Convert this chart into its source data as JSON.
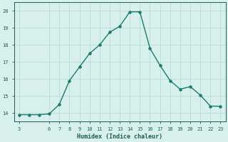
{
  "xlabel": "Humidex (Indice chaleur)",
  "x": [
    3,
    4,
    5,
    6,
    7,
    8,
    9,
    10,
    11,
    12,
    13,
    14,
    15,
    16,
    17,
    18,
    19,
    20,
    21,
    22,
    23
  ],
  "y": [
    13.9,
    13.9,
    13.9,
    13.95,
    14.5,
    15.9,
    16.7,
    17.5,
    18.0,
    18.75,
    19.1,
    19.95,
    19.95,
    17.8,
    16.8,
    15.9,
    15.4,
    15.55,
    15.05,
    14.4,
    14.4
  ],
  "line_color": "#1a7a6e",
  "bg_color": "#d8f0ec",
  "grid_color": "#b8dcd6",
  "text_color": "#1a5c56",
  "ylim": [
    13.5,
    20.5
  ],
  "xlim": [
    2.5,
    23.5
  ],
  "yticks": [
    14,
    15,
    16,
    17,
    18,
    19,
    20
  ],
  "xticks": [
    3,
    6,
    7,
    8,
    9,
    10,
    11,
    12,
    13,
    14,
    15,
    16,
    17,
    18,
    19,
    20,
    21,
    22,
    23
  ]
}
